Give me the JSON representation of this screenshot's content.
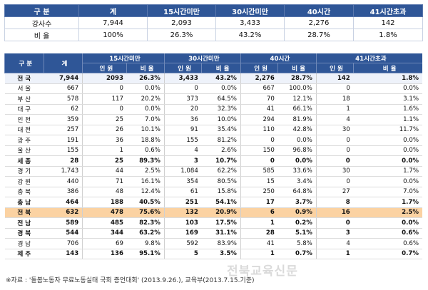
{
  "summary": {
    "headers": [
      "구 분",
      "계",
      "15시간미만",
      "30시간미만",
      "40시간",
      "41시간초과"
    ],
    "rows": [
      [
        "강사수",
        "7,944",
        "2,093",
        "3,433",
        "2,276",
        "142"
      ],
      [
        "비 율",
        "100%",
        "26.3%",
        "43.2%",
        "28.7%",
        "1.8%"
      ]
    ]
  },
  "main": {
    "header_top": [
      "구 분",
      "계",
      "15시간미만",
      "30시간미만",
      "40시간",
      "41시간초과"
    ],
    "header_sub": [
      "인 원",
      "비 율",
      "인 원",
      "비 율",
      "인 원",
      "비 율",
      "인 원",
      "비 율"
    ],
    "rows": [
      {
        "region": "전 국",
        "total": "7,944",
        "c1": "2093",
        "r1": "26.3%",
        "c2": "3,433",
        "r2": "43.2%",
        "c3": "2,276",
        "r3": "28.7%",
        "c4": "142",
        "r4": "1.8%"
      },
      {
        "region": "서 울",
        "total": "667",
        "c1": "0",
        "r1": "0.0%",
        "c2": "0",
        "r2": "0.0%",
        "c3": "667",
        "r3": "100.0%",
        "c4": "0",
        "r4": "0.0%"
      },
      {
        "region": "부 산",
        "total": "578",
        "c1": "117",
        "r1": "20.2%",
        "c2": "373",
        "r2": "64.5%",
        "c3": "70",
        "r3": "12.1%",
        "c4": "18",
        "r4": "3.1%"
      },
      {
        "region": "대 구",
        "total": "62",
        "c1": "0",
        "r1": "0.0%",
        "c2": "20",
        "r2": "32.3%",
        "c3": "41",
        "r3": "66.1%",
        "c4": "1",
        "r4": "1.6%"
      },
      {
        "region": "인 천",
        "total": "359",
        "c1": "25",
        "r1": "7.0%",
        "c2": "36",
        "r2": "10.0%",
        "c3": "294",
        "r3": "81.9%",
        "c4": "4",
        "r4": "1.1%"
      },
      {
        "region": "대 전",
        "total": "257",
        "c1": "26",
        "r1": "10.1%",
        "c2": "91",
        "r2": "35.4%",
        "c3": "110",
        "r3": "42.8%",
        "c4": "30",
        "r4": "11.7%"
      },
      {
        "region": "광 주",
        "total": "191",
        "c1": "36",
        "r1": "18.8%",
        "c2": "155",
        "r2": "81.2%",
        "c3": "0",
        "r3": "0.0%",
        "c4": "0",
        "r4": "0.0%"
      },
      {
        "region": "울 산",
        "total": "155",
        "c1": "1",
        "r1": "0.6%",
        "c2": "4",
        "r2": "2.6%",
        "c3": "150",
        "r3": "96.8%",
        "c4": "0",
        "r4": "0.0%"
      },
      {
        "region": "세 종",
        "total": "28",
        "c1": "25",
        "r1": "89.3%",
        "c2": "3",
        "r2": "10.7%",
        "c3": "0",
        "r3": "0.0%",
        "c4": "0",
        "r4": "0.0%"
      },
      {
        "region": "경 기",
        "total": "1,743",
        "c1": "44",
        "r1": "2.5%",
        "c2": "1,084",
        "r2": "62.2%",
        "c3": "585",
        "r3": "33.6%",
        "c4": "30",
        "r4": "1.7%"
      },
      {
        "region": "강 원",
        "total": "440",
        "c1": "71",
        "r1": "16.1%",
        "c2": "354",
        "r2": "80.5%",
        "c3": "15",
        "r3": "3.4%",
        "c4": "0",
        "r4": "0.0%"
      },
      {
        "region": "충 북",
        "total": "386",
        "c1": "48",
        "r1": "12.4%",
        "c2": "61",
        "r2": "15.8%",
        "c3": "250",
        "r3": "64.8%",
        "c4": "27",
        "r4": "7.0%"
      },
      {
        "region": "충 남",
        "total": "464",
        "c1": "188",
        "r1": "40.5%",
        "c2": "251",
        "r2": "54.1%",
        "c3": "17",
        "r3": "3.7%",
        "c4": "8",
        "r4": "1.7%"
      },
      {
        "region": "전 북",
        "total": "632",
        "c1": "478",
        "r1": "75.6%",
        "c2": "132",
        "r2": "20.9%",
        "c3": "6",
        "r3": "0.9%",
        "c4": "16",
        "r4": "2.5%"
      },
      {
        "region": "전 남",
        "total": "589",
        "c1": "485",
        "r1": "82.3%",
        "c2": "103",
        "r2": "17.5%",
        "c3": "1",
        "r3": "0.2%",
        "c4": "0",
        "r4": "0.0%"
      },
      {
        "region": "경 북",
        "total": "544",
        "c1": "344",
        "r1": "63.2%",
        "c2": "169",
        "r2": "31.1%",
        "c3": "28",
        "r3": "5.1%",
        "c4": "3",
        "r4": "0.6%"
      },
      {
        "region": "경 남",
        "total": "706",
        "c1": "69",
        "r1": "9.8%",
        "c2": "592",
        "r2": "83.9%",
        "c3": "41",
        "r3": "5.8%",
        "c4": "4",
        "r4": "0.6%"
      },
      {
        "region": "제 주",
        "total": "143",
        "c1": "136",
        "r1": "95.1%",
        "c2": "5",
        "r2": "3.5%",
        "c3": "1",
        "r3": "0.7%",
        "c4": "1",
        "r4": "0.7%"
      }
    ]
  },
  "footnote": "※자료 : '돌봄노동자 무료노동실태 국회 증언대회' (2013.9.26.), 교육부(2013.7.15.기준)",
  "watermark": "전북교육신문",
  "colors": {
    "header_bg": "#2f5697",
    "highlight_row": "#fbd2a2"
  }
}
